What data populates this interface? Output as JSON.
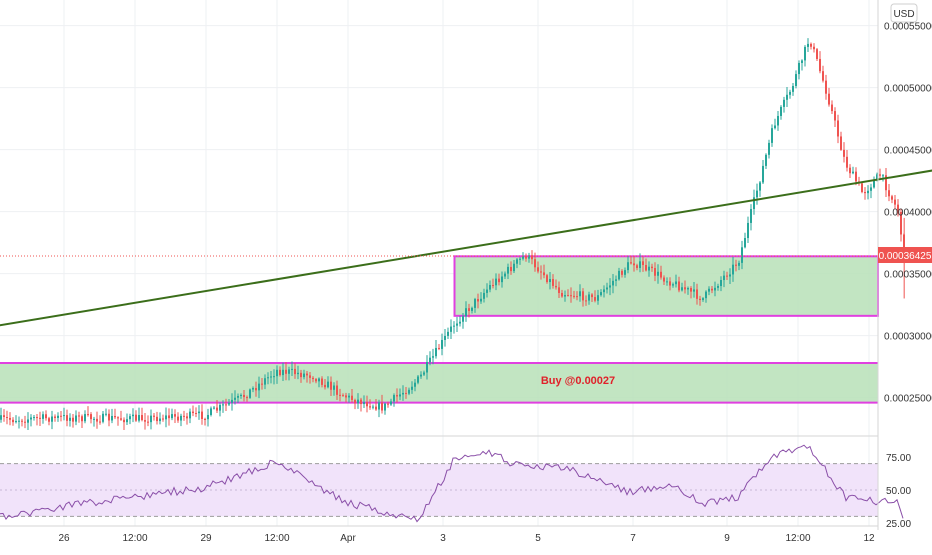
{
  "currency": "USD",
  "price_axis": {
    "ticks": [
      "0.00055000",
      "0.00050000",
      "0.00045000",
      "0.00040000",
      "0.00035000",
      "0.00030000",
      "0.00025000"
    ],
    "tick_values": [
      0.00055,
      0.0005,
      0.00045,
      0.0004,
      0.00035,
      0.0003,
      0.00025
    ],
    "current_price_label": "0.00036425",
    "current_price": 0.00036425
  },
  "rsi_axis": {
    "ticks": [
      "75.00",
      "50.00",
      "25.00"
    ],
    "tick_values": [
      75,
      50,
      25
    ],
    "band": [
      30,
      70
    ]
  },
  "time_axis": {
    "labels": [
      "26",
      "12:00",
      "29",
      "12:00",
      "Apr",
      "3",
      "5",
      "7",
      "9",
      "12:00",
      "12"
    ]
  },
  "colors": {
    "up": "#26a69a",
    "down": "#ef5350",
    "trendline": "#3b6e1a",
    "zone_fill": "#b7e1b7",
    "zone_border": "#e040e0",
    "rsi_line": "#8a4fa8",
    "rsi_band": "#f1e3fa",
    "price_label_bg": "#ef5350",
    "annotation": "#e0202a"
  },
  "annotation": {
    "text": "Buy @0.00027"
  },
  "chart_data": {
    "type": "candlestick",
    "title": "",
    "xlabel": "",
    "ylabel": "",
    "ylim": [
      0.00023,
      0.000565
    ],
    "grid": true,
    "x_range_days": [
      "Mar 24",
      "Apr 12"
    ],
    "last_close": 0.00036425,
    "trendline": {
      "from": {
        "date": "Mar 24",
        "price": 0.000298
      },
      "to": {
        "date": "Apr 11",
        "price": 0.000469
      }
    },
    "zones": [
      {
        "from_date": "Mar 31 12:00",
        "to_date": "Apr 6 18:00",
        "low": 0.000316,
        "high": 0.000364
      },
      {
        "from_date": "Mar 24",
        "to_date": "Apr 12",
        "low": 0.000246,
        "high": 0.000278,
        "label": "Buy @0.00027"
      }
    ],
    "price_path": [
      {
        "date": "Mar 24",
        "price": 0.000275
      },
      {
        "date": "Mar 24 12:00",
        "price": 0.00024
      },
      {
        "date": "Mar 25",
        "price": 0.000232
      },
      {
        "date": "Mar 26",
        "price": 0.000234
      },
      {
        "date": "Mar 27",
        "price": 0.000233
      },
      {
        "date": "Mar 28",
        "price": 0.000236
      },
      {
        "date": "Mar 28 12:00",
        "price": 0.00025
      },
      {
        "date": "Mar 29",
        "price": 0.000272
      },
      {
        "date": "Mar 29 12:00",
        "price": 0.000268
      },
      {
        "date": "Mar 30",
        "price": 0.00025
      },
      {
        "date": "Mar 30 12:00",
        "price": 0.000242
      },
      {
        "date": "Mar 31",
        "price": 0.000265
      },
      {
        "date": "Mar 31 12:00",
        "price": 0.00031
      },
      {
        "date": "Apr 1",
        "price": 0.00034
      },
      {
        "date": "Apr 1 12:00",
        "price": 0.000365
      },
      {
        "date": "Apr 2",
        "price": 0.000335
      },
      {
        "date": "Apr 2 12:00",
        "price": 0.00033
      },
      {
        "date": "Apr 3",
        "price": 0.00036
      },
      {
        "date": "Apr 3 12:00",
        "price": 0.000345
      },
      {
        "date": "Apr 4",
        "price": 0.00033
      },
      {
        "date": "Apr 4 12:00",
        "price": 0.00036
      },
      {
        "date": "Apr 5",
        "price": 0.00047
      },
      {
        "date": "Apr 5 06:00",
        "price": 0.0005
      },
      {
        "date": "Apr 5 12:00",
        "price": 0.00054
      },
      {
        "date": "Apr 5 18:00",
        "price": 0.000495
      },
      {
        "date": "Apr 6",
        "price": 0.00044
      },
      {
        "date": "Apr 6 06:00",
        "price": 0.000415
      },
      {
        "date": "Apr 6 12:00",
        "price": 0.00043
      },
      {
        "date": "Apr 6 18:00",
        "price": 0.0004
      },
      {
        "date": "Apr 6 20:00",
        "price": 0.000364
      }
    ],
    "rsi": [
      {
        "date": "Mar 24",
        "value": 45
      },
      {
        "date": "Mar 25",
        "value": 28
      },
      {
        "date": "Mar 26",
        "value": 38
      },
      {
        "date": "Mar 27",
        "value": 45
      },
      {
        "date": "Mar 28",
        "value": 52
      },
      {
        "date": "Mar 28 12:00",
        "value": 62
      },
      {
        "date": "Mar 29",
        "value": 72
      },
      {
        "date": "Mar 29 12:00",
        "value": 55
      },
      {
        "date": "Mar 30",
        "value": 40
      },
      {
        "date": "Mar 31",
        "value": 27
      },
      {
        "date": "Mar 31 12:00",
        "value": 74
      },
      {
        "date": "Apr 1",
        "value": 78
      },
      {
        "date": "Apr 1 12:00",
        "value": 66
      },
      {
        "date": "Apr 2",
        "value": 68
      },
      {
        "date": "Apr 2 12:00",
        "value": 58
      },
      {
        "date": "Apr 3",
        "value": 48
      },
      {
        "date": "Apr 3 12:00",
        "value": 55
      },
      {
        "date": "Apr 4",
        "value": 40
      },
      {
        "date": "Apr 4 12:00",
        "value": 45
      },
      {
        "date": "Apr 5",
        "value": 76
      },
      {
        "date": "Apr 5 12:00",
        "value": 82
      },
      {
        "date": "Apr 6",
        "value": 45
      },
      {
        "date": "Apr 6 12:00",
        "value": 40
      },
      {
        "date": "Apr 6 18:00",
        "value": 44
      },
      {
        "date": "Apr 6 20:00",
        "value": 25
      }
    ]
  }
}
